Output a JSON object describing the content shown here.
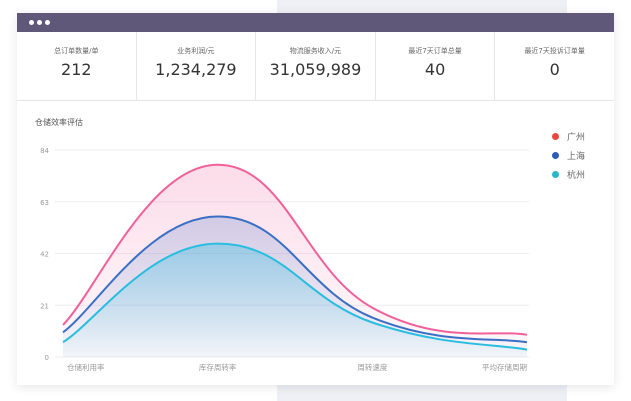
{
  "window": {
    "menu_icon": "more-horizontal-icon"
  },
  "stats": [
    {
      "label": "总订单数量/单",
      "value": "212"
    },
    {
      "label": "业务利润/元",
      "value": "1,234,279"
    },
    {
      "label": "物流服务收入/元",
      "value": "31,059,989"
    },
    {
      "label": "最近7天订单总量",
      "value": "40"
    },
    {
      "label": "最近7天投诉订单量",
      "value": "0"
    }
  ],
  "chart_data": {
    "type": "area",
    "title": "仓储效率评估",
    "categories": [
      "仓储利用率",
      "库存周转率",
      "周转速度",
      "平均存储周期"
    ],
    "yticks": [
      0,
      21,
      42,
      63,
      84
    ],
    "ylim": [
      0,
      84
    ],
    "legend_position": "top-right",
    "grid": true,
    "series": [
      {
        "name": "广州",
        "color": "#f0619a",
        "legend_color": "#e8473f",
        "values": [
          13,
          78,
          20,
          9
        ]
      },
      {
        "name": "上海",
        "color": "#3a6fc4",
        "legend_color": "#2d5cb8",
        "values": [
          10,
          57,
          16,
          6
        ]
      },
      {
        "name": "杭州",
        "color": "#29bde0",
        "legend_color": "#29b6c8",
        "values": [
          6,
          46,
          14,
          3
        ]
      }
    ]
  }
}
